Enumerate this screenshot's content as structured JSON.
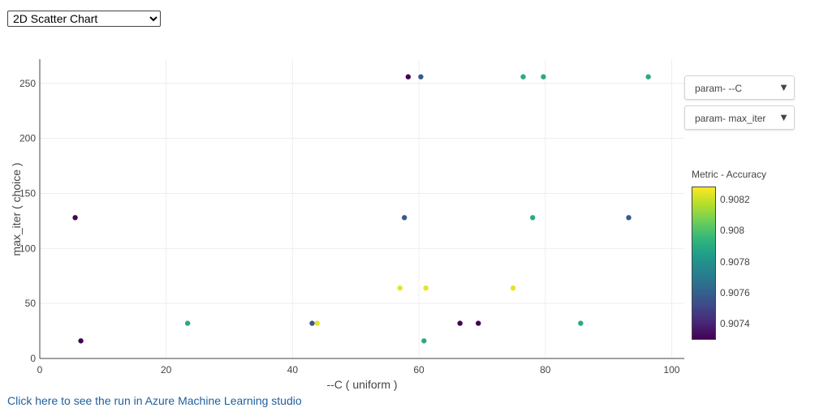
{
  "controls": {
    "chart_type_selected": "2D Scatter Chart",
    "x_param_dropdown": "param- --C",
    "y_param_dropdown": "param- max_iter",
    "dropdown_caret": "▼"
  },
  "link": {
    "text": "Click here to see the run in Azure Machine Learning studio"
  },
  "colors": {
    "scale": [
      "#440154",
      "#482878",
      "#3e4a89",
      "#31688e",
      "#26828e",
      "#1f9e89",
      "#35b779",
      "#6ece58",
      "#b5de2b",
      "#fde725"
    ],
    "axis": "#444444",
    "grid": "#eeeeee",
    "link": "#1f5f9e"
  },
  "chart_data": {
    "type": "scatter",
    "xlabel": "--C ( uniform )",
    "ylabel": "max_iter ( choice )",
    "xlim": [
      0,
      102
    ],
    "ylim": [
      0,
      272
    ],
    "x_ticks": [
      0,
      20,
      40,
      60,
      80,
      100
    ],
    "y_ticks": [
      0,
      50,
      100,
      150,
      200,
      250
    ],
    "grid": true,
    "colorbar": {
      "title": "Metric - Accuracy",
      "range": [
        90.7296,
        90.8285
      ],
      "tick_values": [
        0.9074,
        0.9076,
        0.9078,
        0.908,
        0.9082
      ],
      "tick_labels": [
        "0.9074",
        "0.9076",
        "0.9078",
        "0.908",
        "0.9082"
      ],
      "position": "right"
    },
    "points": [
      {
        "x": 58.3,
        "y": 256,
        "c": 0.9073
      },
      {
        "x": 60.3,
        "y": 256,
        "c": 0.90757
      },
      {
        "x": 76.5,
        "y": 256,
        "c": 0.9079
      },
      {
        "x": 79.7,
        "y": 256,
        "c": 0.9079
      },
      {
        "x": 96.3,
        "y": 256,
        "c": 0.9079
      },
      {
        "x": 5.6,
        "y": 128,
        "c": 0.9073
      },
      {
        "x": 57.7,
        "y": 128,
        "c": 0.90757
      },
      {
        "x": 78.0,
        "y": 128,
        "c": 0.9079
      },
      {
        "x": 93.2,
        "y": 128,
        "c": 0.90757
      },
      {
        "x": 57.0,
        "y": 64,
        "c": 0.90825
      },
      {
        "x": 61.1,
        "y": 64,
        "c": 0.90825
      },
      {
        "x": 74.9,
        "y": 64,
        "c": 0.90825
      },
      {
        "x": 23.4,
        "y": 32,
        "c": 0.9079
      },
      {
        "x": 43.1,
        "y": 32,
        "c": 0.90757
      },
      {
        "x": 43.9,
        "y": 32,
        "c": 0.90825
      },
      {
        "x": 66.5,
        "y": 32,
        "c": 0.9073
      },
      {
        "x": 69.4,
        "y": 32,
        "c": 0.9073
      },
      {
        "x": 85.6,
        "y": 32,
        "c": 0.9079
      },
      {
        "x": 6.5,
        "y": 16,
        "c": 0.9073
      },
      {
        "x": 60.8,
        "y": 16,
        "c": 0.9079
      }
    ]
  }
}
